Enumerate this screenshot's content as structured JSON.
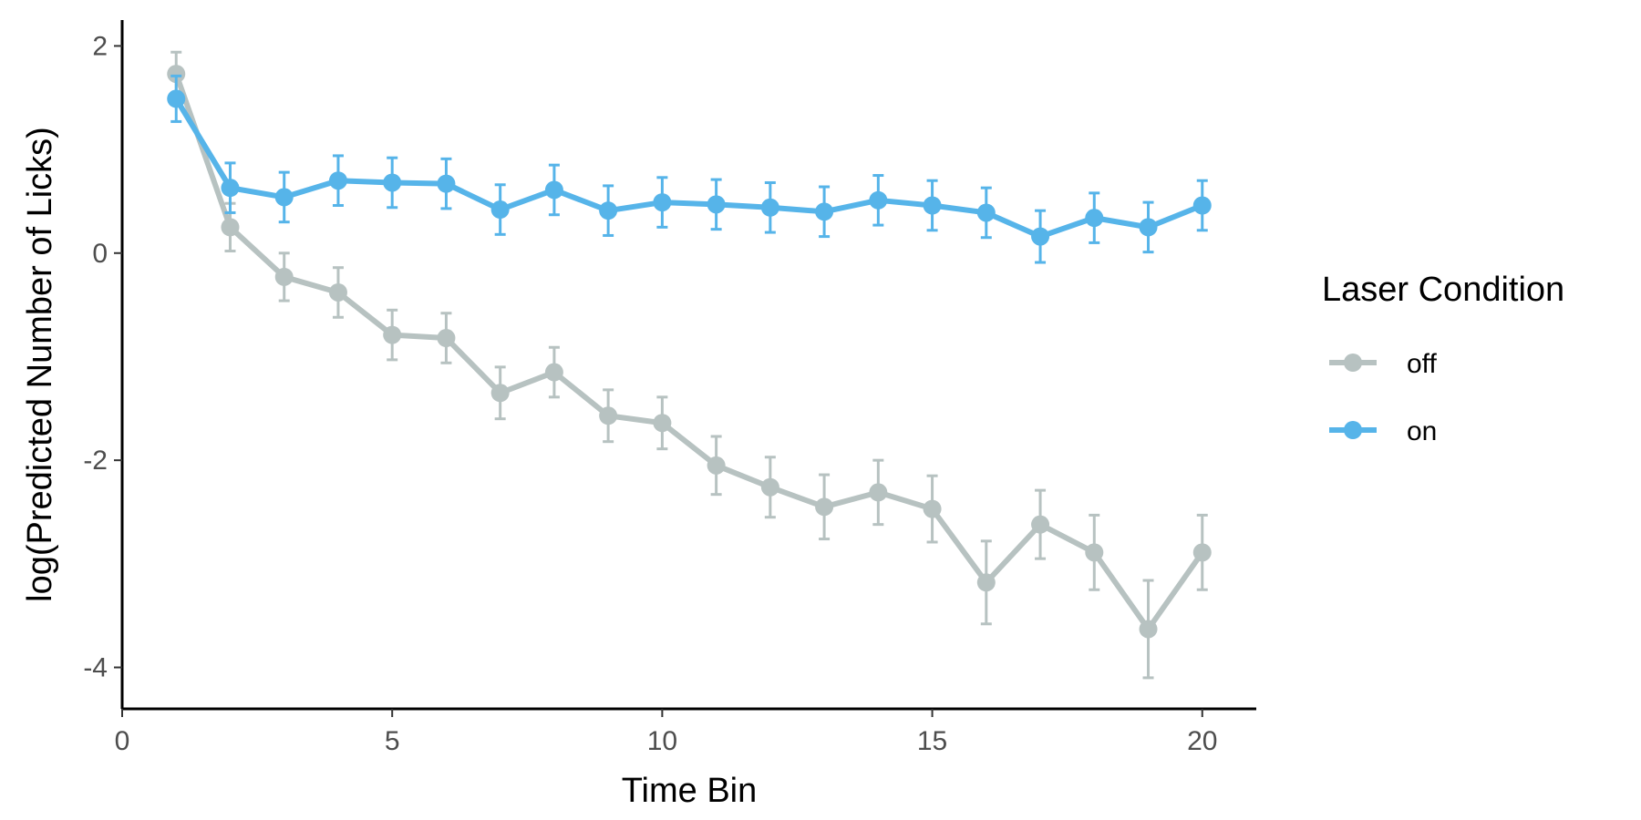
{
  "chart_data": {
    "type": "line",
    "xlabel": "Time Bin",
    "ylabel": "log(Predicted Number of Licks)",
    "xlim": [
      0,
      21
    ],
    "ylim": [
      -4.4,
      2.25
    ],
    "xticks": [
      0,
      5,
      10,
      15,
      20
    ],
    "xtick_labels": [
      "0",
      "5",
      "10",
      "15",
      "20"
    ],
    "yticks": [
      2,
      0,
      -2,
      -4
    ],
    "ytick_labels": [
      "2",
      "0",
      "-2",
      "-4"
    ],
    "grid": false,
    "legend": {
      "title": "Laser Condition",
      "position": "right"
    },
    "x": [
      1,
      2,
      3,
      4,
      5,
      6,
      7,
      8,
      9,
      10,
      11,
      12,
      13,
      14,
      15,
      16,
      17,
      18,
      19,
      20
    ],
    "series": [
      {
        "name": "off",
        "color": "#b7c2c1",
        "values": [
          1.73,
          0.25,
          -0.23,
          -0.38,
          -0.79,
          -0.82,
          -1.35,
          -1.15,
          -1.57,
          -1.64,
          -2.05,
          -2.26,
          -2.45,
          -2.31,
          -2.47,
          -3.18,
          -2.62,
          -2.89,
          -3.63,
          -2.89
        ],
        "lower": [
          1.52,
          0.02,
          -0.46,
          -0.62,
          -1.03,
          -1.06,
          -1.6,
          -1.39,
          -1.82,
          -1.89,
          -2.33,
          -2.55,
          -2.76,
          -2.62,
          -2.79,
          -3.58,
          -2.95,
          -3.25,
          -4.1,
          -3.25
        ],
        "upper": [
          1.94,
          0.48,
          0.0,
          -0.14,
          -0.55,
          -0.58,
          -1.1,
          -0.91,
          -1.32,
          -1.39,
          -1.77,
          -1.97,
          -2.14,
          -2.0,
          -2.15,
          -2.78,
          -2.29,
          -2.53,
          -3.16,
          -2.53
        ]
      },
      {
        "name": "on",
        "color": "#56b4e9",
        "values": [
          1.49,
          0.63,
          0.54,
          0.7,
          0.68,
          0.67,
          0.42,
          0.61,
          0.41,
          0.49,
          0.47,
          0.44,
          0.4,
          0.51,
          0.46,
          0.39,
          0.16,
          0.34,
          0.25,
          0.46
        ],
        "lower": [
          1.27,
          0.39,
          0.3,
          0.46,
          0.44,
          0.43,
          0.18,
          0.37,
          0.17,
          0.25,
          0.23,
          0.2,
          0.16,
          0.27,
          0.22,
          0.15,
          -0.09,
          0.1,
          0.01,
          0.22
        ],
        "upper": [
          1.71,
          0.87,
          0.78,
          0.94,
          0.92,
          0.91,
          0.66,
          0.85,
          0.65,
          0.73,
          0.71,
          0.68,
          0.64,
          0.75,
          0.7,
          0.63,
          0.41,
          0.58,
          0.49,
          0.7
        ]
      }
    ]
  }
}
